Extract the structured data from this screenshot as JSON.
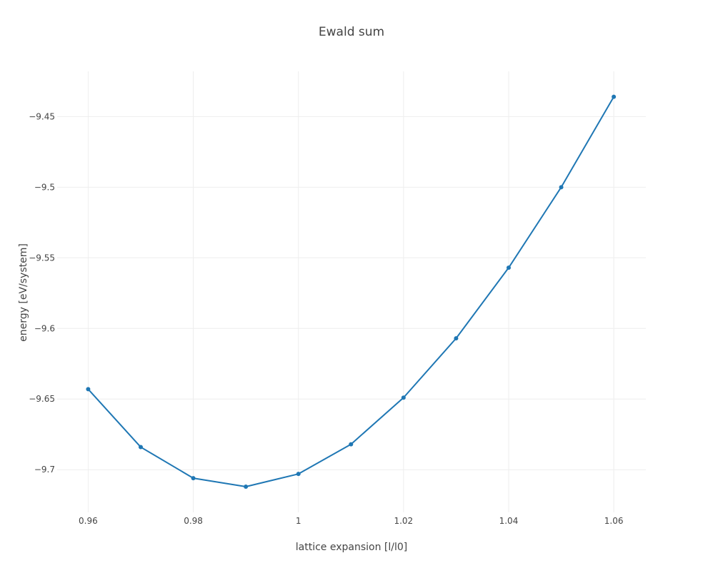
{
  "chart_data": {
    "type": "line",
    "title": "Ewald sum",
    "xlabel": "lattice expansion [l/l0]",
    "ylabel": "energy [eV/system]",
    "x": [
      0.96,
      0.97,
      0.98,
      0.99,
      1.0,
      1.01,
      1.02,
      1.03,
      1.04,
      1.05,
      1.06
    ],
    "series": [
      {
        "values": [
          -9.643,
          -9.684,
          -9.706,
          -9.712,
          -9.703,
          -9.682,
          -9.649,
          -9.607,
          -9.557,
          -9.5,
          -9.436
        ]
      }
    ],
    "xlim": [
      0.9541,
      1.0661
    ],
    "ylim": [
      -9.7302,
      -9.418
    ],
    "x_ticks": [
      0.96,
      0.98,
      1.0,
      1.02,
      1.04,
      1.06
    ],
    "x_tick_labels": [
      "0.96",
      "0.98",
      "1",
      "1.02",
      "1.04",
      "1.06"
    ],
    "y_ticks": [
      -9.45,
      -9.5,
      -9.55,
      -9.6,
      -9.65,
      -9.7
    ],
    "y_tick_labels": [
      "−9.45",
      "−9.5",
      "−9.55",
      "−9.6",
      "−9.65",
      "−9.7"
    ],
    "grid": true,
    "legend": "none",
    "line_color": "#1f77b4",
    "marker": "circle"
  }
}
